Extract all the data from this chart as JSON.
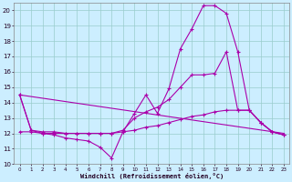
{
  "xlabel": "Windchill (Refroidissement éolien,°C)",
  "background_color": "#cceeff",
  "line_color": "#aa00aa",
  "grid_color": "#99cccc",
  "xlim": [
    -0.5,
    23.5
  ],
  "ylim": [
    10,
    20.5
  ],
  "yticks": [
    10,
    11,
    12,
    13,
    14,
    15,
    16,
    17,
    18,
    19,
    20
  ],
  "xticks": [
    0,
    1,
    2,
    3,
    4,
    5,
    6,
    7,
    8,
    9,
    10,
    11,
    12,
    13,
    14,
    15,
    16,
    17,
    18,
    19,
    20,
    21,
    22,
    23
  ],
  "line0_x": [
    0,
    1,
    2,
    3,
    4,
    5,
    6,
    7,
    8,
    9,
    10,
    11,
    12,
    13,
    14,
    15,
    16,
    17,
    18,
    19,
    20,
    21,
    22,
    23
  ],
  "line0_y": [
    14.5,
    12.2,
    12.0,
    11.9,
    11.7,
    11.6,
    11.5,
    11.1,
    10.4,
    12.1,
    13.3,
    14.5,
    13.3,
    14.9,
    17.5,
    18.8,
    20.3,
    20.3,
    19.8,
    17.3,
    13.5,
    12.7,
    12.1,
    11.9
  ],
  "line1_x": [
    0,
    23
  ],
  "line1_y": [
    14.5,
    12.0
  ],
  "line2_x": [
    0,
    1,
    2,
    3,
    4,
    5,
    6,
    7,
    8,
    9,
    10,
    11,
    12,
    13,
    14,
    15,
    16,
    17,
    18,
    19,
    20,
    21,
    22,
    23
  ],
  "line2_y": [
    12.1,
    12.1,
    12.0,
    12.0,
    12.0,
    12.0,
    12.0,
    12.0,
    12.0,
    12.1,
    12.2,
    12.4,
    12.5,
    12.7,
    12.9,
    13.1,
    13.2,
    13.4,
    13.5,
    13.5,
    13.5,
    12.7,
    12.1,
    11.9
  ],
  "line3_x": [
    0,
    1,
    2,
    3,
    4,
    5,
    6,
    7,
    8,
    9,
    10,
    11,
    12,
    13,
    14,
    15,
    16,
    17,
    18,
    19,
    20,
    21,
    22,
    23
  ],
  "line3_y": [
    14.5,
    12.2,
    12.1,
    12.1,
    12.0,
    12.0,
    12.0,
    12.0,
    12.0,
    12.2,
    13.0,
    13.4,
    13.7,
    14.2,
    15.0,
    15.8,
    15.8,
    15.9,
    17.3,
    13.5,
    13.5,
    12.7,
    12.1,
    11.9
  ]
}
